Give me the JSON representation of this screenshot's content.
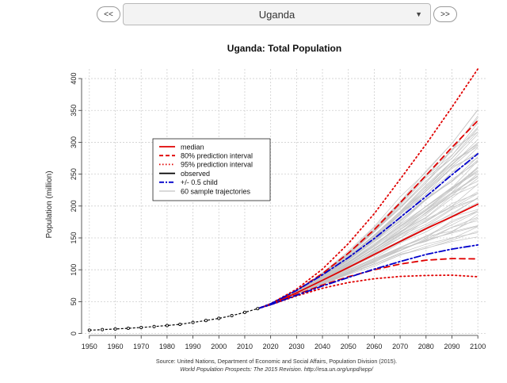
{
  "navigation": {
    "prev_label": "<<",
    "next_label": ">>",
    "country_selected": "Uganda"
  },
  "chart_data": {
    "type": "line",
    "title": "Uganda: Total Population",
    "ylabel": "Population (million)",
    "xlabel": "",
    "xlim": [
      1947,
      2103
    ],
    "ylim": [
      -3,
      415
    ],
    "x_ticks": [
      "1950",
      "1960",
      "1970",
      "1980",
      "1990",
      "2000",
      "2010",
      "2020",
      "2030",
      "2040",
      "2050",
      "2060",
      "2070",
      "2080",
      "2090",
      "2100"
    ],
    "y_ticks": [
      "0",
      "50",
      "100",
      "150",
      "200",
      "250",
      "300",
      "350",
      "400"
    ],
    "grid": true,
    "legend_position": "top-left",
    "legend": [
      {
        "label": "median",
        "color": "#e00000",
        "style": "solid"
      },
      {
        "label": "80% prediction interval",
        "color": "#e00000",
        "style": "dashed"
      },
      {
        "label": "95% prediction interval",
        "color": "#e00000",
        "style": "dotted"
      },
      {
        "label": "observed",
        "color": "#000000",
        "style": "solid"
      },
      {
        "label": "+/- 0.5 child",
        "color": "#0000cc",
        "style": "dashdot"
      },
      {
        "label": "60 sample trajectories",
        "color": "#b5b5b5",
        "style": "solid"
      }
    ],
    "observed": {
      "x": [
        1950,
        1955,
        1960,
        1965,
        1970,
        1975,
        1980,
        1985,
        1990,
        1995,
        2000,
        2005,
        2010,
        2015
      ],
      "values": [
        5.2,
        6.1,
        7.1,
        8.2,
        9.4,
        10.9,
        12.5,
        14.4,
        17.4,
        20.4,
        23.8,
        28.0,
        33.2,
        39.0
      ]
    },
    "series": [
      {
        "name": "median",
        "x": [
          2015,
          2020,
          2030,
          2040,
          2050,
          2060,
          2070,
          2080,
          2090,
          2100
        ],
        "values": [
          39.0,
          45.9,
          63.8,
          83.4,
          103.6,
          124.0,
          144.4,
          164.6,
          183.2,
          202.9
        ]
      },
      {
        "name": "80% upper",
        "x": [
          2015,
          2020,
          2030,
          2040,
          2050,
          2060,
          2070,
          2080,
          2090,
          2100
        ],
        "values": [
          39.0,
          46.5,
          67.5,
          94.0,
          126.0,
          163.0,
          205.0,
          248.0,
          292.0,
          334.0
        ]
      },
      {
        "name": "80% lower",
        "x": [
          2015,
          2020,
          2030,
          2040,
          2050,
          2060,
          2070,
          2080,
          2090,
          2100
        ],
        "values": [
          39.0,
          45.3,
          61.0,
          76.0,
          89.0,
          100.0,
          109.0,
          115.0,
          117.5,
          117.0
        ]
      },
      {
        "name": "95% upper",
        "x": [
          2015,
          2020,
          2030,
          2040,
          2050,
          2060,
          2070,
          2080,
          2090,
          2100
        ],
        "values": [
          39.0,
          46.8,
          69.5,
          101.0,
          141.0,
          188.0,
          242.0,
          297.0,
          355.0,
          415.0
        ]
      },
      {
        "name": "95% lower",
        "x": [
          2015,
          2020,
          2030,
          2040,
          2050,
          2060,
          2070,
          2080,
          2090,
          2100
        ],
        "values": [
          39.0,
          45.0,
          59.0,
          71.0,
          80.0,
          86.0,
          89.5,
          91.0,
          91.5,
          89.0
        ]
      },
      {
        "name": "+0.5 child",
        "x": [
          2015,
          2020,
          2030,
          2040,
          2050,
          2060,
          2070,
          2080,
          2090,
          2100
        ],
        "values": [
          39.0,
          46.6,
          67.5,
          92.0,
          119.0,
          149.0,
          182.0,
          215.0,
          249.0,
          282.0
        ]
      },
      {
        "name": "-0.5 child",
        "x": [
          2015,
          2020,
          2030,
          2040,
          2050,
          2060,
          2070,
          2080,
          2090,
          2100
        ],
        "values": [
          39.0,
          45.2,
          60.0,
          74.5,
          88.0,
          101.0,
          113.0,
          124.0,
          132.5,
          139.0
        ]
      }
    ],
    "sample_trajectories_count": 60,
    "sample_end_range": [
      110,
      300
    ],
    "source_line1": "Source: United Nations, Department of Economic and Social Affairs, Population Division (2015).",
    "source_line2": "World Population Prospects: The 2015 Revision. http://esa.un.org/unpd/wpp/"
  }
}
